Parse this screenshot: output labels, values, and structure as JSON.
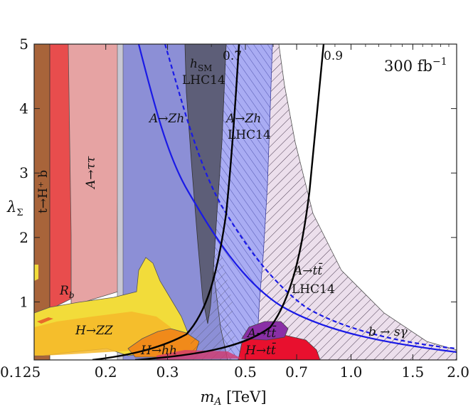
{
  "chart_data": {
    "type": "area",
    "title": "",
    "xlabel": "m_A [TeV]",
    "ylabel": "λ_Σ",
    "xscale": "log",
    "xlim": [
      0.125,
      2.0
    ],
    "ylim": [
      0.1,
      5.0
    ],
    "x_ticks": [
      0.125,
      0.2,
      0.3,
      0.5,
      0.7,
      1.0,
      1.5,
      2.0
    ],
    "x_tick_labels": [
      "0.125",
      "0.2",
      "0.3",
      "0.5",
      "0.7",
      "1.0",
      "1.5",
      "2.0"
    ],
    "y_ticks": [
      1,
      2,
      3,
      4,
      5
    ],
    "y_tick_labels": [
      "1",
      "2",
      "3",
      "4",
      "5"
    ],
    "luminosity_label": "300 fb",
    "luminosity_exponent": "−1",
    "regions": [
      {
        "name": "t→H⁺b",
        "label": "t→H⁺ b",
        "color": "#a8643a",
        "x_range": [
          0.125,
          0.142
        ]
      },
      {
        "name": "R_b",
        "label": "R_b",
        "color": "#e84d4d"
      },
      {
        "name": "A→ττ",
        "label": "A→ττ",
        "color": "#e6a3a3"
      },
      {
        "name": "A→Zh",
        "label": "A→Zh",
        "color": "#8c8fd6"
      },
      {
        "name": "h_SM LHC14",
        "label": "LHC14",
        "label_main": "h",
        "label_sub": "SM",
        "color": "#5f5f7a"
      },
      {
        "name": "A→Zh LHC14",
        "label": "A→Zh",
        "label2": "LHC14",
        "color": "#a8acf2"
      },
      {
        "name": "A→tt̄ LHC14",
        "label": "A→tt̄",
        "label2": "LHC14",
        "color": "#e8dcea"
      },
      {
        "name": "H→ZZ",
        "label": "H→ZZ",
        "color": "#f2d22a"
      },
      {
        "name": "H→hh",
        "label": "H→hh",
        "color": "#f08a1a"
      },
      {
        "name": "A→tt̄",
        "label": "A→tt̄",
        "color": "#8a2fa6"
      },
      {
        "name": "H→tt̄",
        "label": "H→tt̄",
        "color": "#e8102e"
      }
    ],
    "contours": [
      {
        "name": "0.7",
        "label": "0.7",
        "color": "#000000",
        "style": "solid"
      },
      {
        "name": "0.9",
        "label": "0.9",
        "color": "#000000",
        "style": "solid"
      },
      {
        "name": "b→sγ",
        "label": "b → sγ",
        "color": "#1a1ae6",
        "style": "solid/dashed"
      }
    ]
  }
}
